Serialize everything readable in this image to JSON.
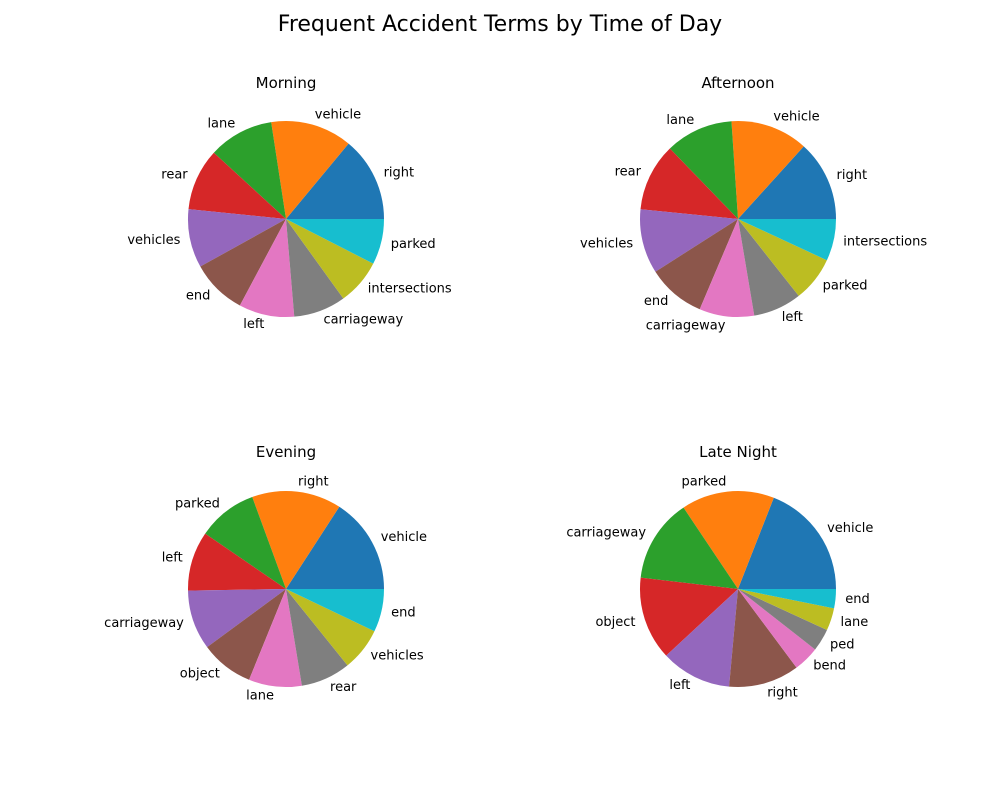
{
  "figure": {
    "title": "Frequent Accident Terms by Time of Day"
  },
  "palette": [
    "#1f77b4",
    "#ff7f0e",
    "#2ca02c",
    "#d62728",
    "#9467bd",
    "#8c564b",
    "#e377c2",
    "#7f7f7f",
    "#bcbd22",
    "#17becf"
  ],
  "chart_data": [
    {
      "type": "pie",
      "title": "Morning",
      "labels": [
        "right",
        "vehicle",
        "lane",
        "rear",
        "vehicles",
        "end",
        "left",
        "carriageway",
        "intersections",
        "parked"
      ],
      "values": [
        13,
        12.5,
        10,
        9.5,
        9,
        8.5,
        8.5,
        8,
        7,
        7
      ]
    },
    {
      "type": "pie",
      "title": "Afternoon",
      "labels": [
        "right",
        "vehicle",
        "lane",
        "rear",
        "vehicles",
        "end",
        "carriageway",
        "left",
        "parked",
        "intersections"
      ],
      "values": [
        12.5,
        12,
        10.5,
        10.5,
        10,
        9,
        8.5,
        7.5,
        7,
        6.5
      ]
    },
    {
      "type": "pie",
      "title": "Evening",
      "labels": [
        "vehicle",
        "right",
        "parked",
        "left",
        "carriageway",
        "object",
        "lane",
        "rear",
        "vehicles",
        "end"
      ],
      "values": [
        14.5,
        13.5,
        9,
        9,
        9,
        8,
        8,
        7.5,
        6.5,
        6.5
      ]
    },
    {
      "type": "pie",
      "title": "Late Night",
      "labels": [
        "vehicle",
        "parked",
        "carriageway",
        "object",
        "left",
        "right",
        "bend",
        "ped",
        "lane",
        "end"
      ],
      "values": [
        18,
        14.5,
        13,
        13,
        11,
        11,
        4,
        3.5,
        3.5,
        3
      ]
    }
  ]
}
